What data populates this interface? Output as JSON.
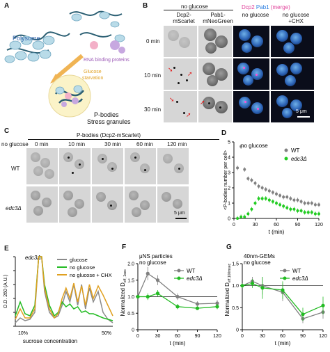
{
  "panels": {
    "A": "A",
    "B": "B",
    "C": "C",
    "D": "D",
    "E": "E",
    "F": "F",
    "G": "G"
  },
  "panelA": {
    "polysome": "Polysome",
    "rbp": "RNA binding proteins",
    "starvation_line1": "Glucose",
    "starvation_line2": "starvation",
    "pbodies": "P-bodies",
    "stress": "Stress granules"
  },
  "panelB": {
    "header_no_glucose": "no glucose",
    "col_dcp2_l1": "Dcp2-",
    "col_dcp2_l2": "mScarlet",
    "col_pab1_l1": "Pab1-",
    "col_pab1_l2": "mNeoGreen",
    "merge_dcp2": "Dcp2",
    "merge_pab1": "Pab1",
    "merge_word": "(merge)",
    "col_no_glucose": "no glucose",
    "col_chx_l1": "no glucose",
    "col_chx_l2": "+CHX",
    "rows": [
      "0 min",
      "10 min",
      "30 min"
    ],
    "scale": "5 μm"
  },
  "panelC": {
    "title": "P-bodies (Dcp2-mScarlet)",
    "times": [
      "no glucose",
      "0 min",
      "10 min",
      "30 min",
      "60 min",
      "120 min"
    ],
    "row_wt": "WT",
    "row_edc3": "edc3Δ",
    "scale": "5 μm"
  },
  "chart_data": [
    {
      "panel": "D",
      "type": "scatter",
      "annotation": "no glucose",
      "xlabel": "t (min)",
      "ylabel": "<P-bodies number per cell>",
      "xlim": [
        0,
        120
      ],
      "ylim": [
        0,
        5
      ],
      "xticks": [
        0,
        30,
        60,
        90,
        120
      ],
      "yticks": [
        0,
        1,
        2,
        3,
        4,
        5
      ],
      "series": [
        {
          "name": "WT",
          "color": "#808080",
          "x": [
            5,
            10,
            15,
            20,
            25,
            30,
            35,
            40,
            45,
            50,
            55,
            60,
            65,
            70,
            75,
            80,
            85,
            90,
            95,
            100,
            105,
            110,
            115,
            120
          ],
          "y": [
            3.3,
            4.7,
            3.2,
            2.6,
            2.5,
            2.3,
            2.1,
            2.0,
            1.9,
            1.8,
            1.7,
            1.6,
            1.5,
            1.4,
            1.4,
            1.3,
            1.2,
            1.2,
            1.1,
            1.0,
            1.0,
            1.0,
            0.9,
            0.9
          ]
        },
        {
          "name": "edc3Δ",
          "color": "#22cc22",
          "x": [
            5,
            10,
            15,
            20,
            25,
            30,
            35,
            40,
            45,
            50,
            55,
            60,
            65,
            70,
            75,
            80,
            85,
            90,
            95,
            100,
            105,
            110,
            115,
            120
          ],
          "y": [
            0.0,
            0.1,
            0.1,
            0.3,
            0.6,
            1.0,
            1.3,
            1.3,
            1.3,
            1.2,
            1.1,
            1.0,
            0.9,
            0.8,
            0.7,
            0.6,
            0.6,
            0.5,
            0.5,
            0.4,
            0.4,
            0.4,
            0.3,
            0.3
          ]
        }
      ]
    },
    {
      "panel": "E",
      "type": "line",
      "annotation": "edc3Δ",
      "xlabel": "sucrose concentration",
      "ylabel": "O.D. 260 (A.U.)",
      "x_start_label": "10%",
      "x_end_label": "50%",
      "ylim": [
        0,
        1
      ],
      "yticks": [
        0,
        0.2,
        0.4,
        0.6,
        0.8,
        1.0
      ],
      "series": [
        {
          "name": "glucose",
          "color": "#8a8a8a",
          "x": [
            0,
            0.05,
            0.1,
            0.15,
            0.2,
            0.24,
            0.27,
            0.3,
            0.35,
            0.4,
            0.44,
            0.48,
            0.52,
            0.56,
            0.6,
            0.64,
            0.68,
            0.72,
            0.76,
            0.8,
            0.85,
            0.9,
            0.95,
            1.0
          ],
          "y": [
            0.05,
            0.12,
            0.08,
            0.1,
            0.2,
            1.0,
            1.0,
            0.5,
            0.2,
            0.12,
            0.15,
            0.3,
            0.5,
            0.35,
            0.6,
            0.3,
            0.6,
            0.25,
            0.55,
            0.35,
            0.5,
            0.2,
            0.1,
            0.05
          ]
        },
        {
          "name": "no glucose",
          "color": "#22bb22",
          "x": [
            0,
            0.05,
            0.1,
            0.15,
            0.2,
            0.24,
            0.27,
            0.3,
            0.35,
            0.4,
            0.44,
            0.48,
            0.52,
            0.56,
            0.6,
            0.64,
            0.68,
            0.72,
            0.76,
            0.8,
            0.85,
            0.9,
            0.95,
            1.0
          ],
          "y": [
            0.15,
            0.35,
            0.18,
            0.15,
            0.3,
            1.0,
            1.0,
            0.6,
            0.3,
            0.15,
            0.2,
            0.35,
            0.28,
            0.32,
            0.25,
            0.28,
            0.2,
            0.22,
            0.18,
            0.18,
            0.15,
            0.12,
            0.1,
            0.08
          ]
        },
        {
          "name": "no glucose + CHX",
          "color": "#e0a020",
          "x": [
            0,
            0.05,
            0.1,
            0.15,
            0.2,
            0.24,
            0.27,
            0.3,
            0.35,
            0.4,
            0.44,
            0.48,
            0.52,
            0.56,
            0.6,
            0.64,
            0.68,
            0.72,
            0.76,
            0.8,
            0.85,
            0.9,
            0.95,
            1.0
          ],
          "y": [
            0.1,
            0.25,
            0.12,
            0.12,
            0.25,
            1.0,
            1.0,
            0.55,
            0.25,
            0.12,
            0.18,
            0.4,
            0.55,
            0.4,
            0.62,
            0.35,
            0.58,
            0.3,
            0.6,
            0.4,
            0.58,
            0.45,
            0.3,
            0.15
          ]
        }
      ]
    },
    {
      "panel": "F",
      "type": "line",
      "title": "μNS particles",
      "annotation": "no glucose",
      "xlabel": "t (min)",
      "ylabel_main": "Normalized D",
      "ylabel_sub": "eff, 1sec",
      "xlim": [
        0,
        120
      ],
      "ylim": [
        0,
        2.0
      ],
      "xticks": [
        0,
        30,
        60,
        90,
        120
      ],
      "yticks": [
        0,
        0.5,
        1.0,
        1.5,
        2.0
      ],
      "series": [
        {
          "name": "WT",
          "color": "#808080",
          "x": [
            0,
            15,
            30,
            60,
            90,
            120
          ],
          "y": [
            1.0,
            1.7,
            1.5,
            1.0,
            0.78,
            0.8
          ],
          "err": [
            0.05,
            0.2,
            0.15,
            0.1,
            0.08,
            0.1
          ]
        },
        {
          "name": "edc3Δ",
          "color": "#22bb22",
          "x": [
            0,
            15,
            30,
            60,
            90,
            120
          ],
          "y": [
            1.0,
            1.0,
            1.1,
            0.7,
            0.65,
            0.7
          ],
          "err": [
            0.05,
            0.1,
            0.1,
            0.08,
            0.05,
            0.08
          ]
        }
      ]
    },
    {
      "panel": "G",
      "type": "line",
      "title": "40nm-GEMs",
      "annotation": "no glucose",
      "xlabel": "t (min)",
      "ylabel_main": "Normalized D",
      "ylabel_sub": "eff,100msec",
      "xlim": [
        0,
        120
      ],
      "ylim": [
        0,
        1.5
      ],
      "xticks": [
        0,
        30,
        60,
        90,
        120
      ],
      "yticks": [
        0,
        0.5,
        1.0,
        1.5
      ],
      "series": [
        {
          "name": "WT",
          "color": "#808080",
          "x": [
            0,
            15,
            30,
            60,
            90,
            120
          ],
          "y": [
            1.0,
            1.1,
            1.0,
            0.85,
            0.25,
            0.4
          ],
          "err": [
            0.05,
            0.1,
            0.2,
            0.2,
            0.1,
            0.15
          ]
        },
        {
          "name": "edc3Δ",
          "color": "#22bb22",
          "x": [
            0,
            15,
            30,
            60,
            90,
            120
          ],
          "y": [
            1.0,
            1.05,
            0.95,
            0.9,
            0.35,
            0.55
          ],
          "err": [
            0.05,
            0.1,
            0.25,
            0.2,
            0.15,
            0.2
          ]
        }
      ]
    }
  ]
}
